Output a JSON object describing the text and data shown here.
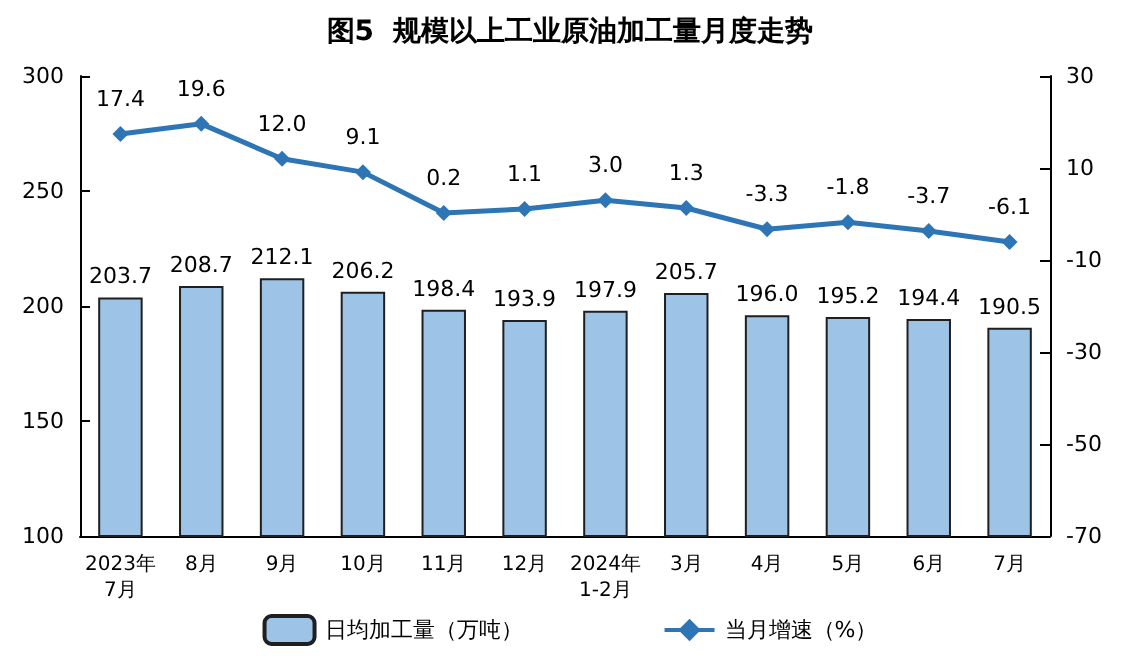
{
  "chart_data": {
    "type": "bar",
    "title": "图5  规模以上工业原油加工量月度走势",
    "categories": [
      "2023年\n7月",
      "8月",
      "9月",
      "10月",
      "11月",
      "12月",
      "2024年\n1-2月",
      "3月",
      "4月",
      "5月",
      "6月",
      "7月"
    ],
    "series": [
      {
        "name": "日均加工量（万吨）",
        "color": "#9dc3e6",
        "values": [
          203.7,
          208.7,
          212.1,
          206.2,
          198.4,
          193.9,
          197.9,
          205.7,
          196.0,
          195.2,
          194.4,
          190.5
        ],
        "value_labels": [
          "203.7",
          "208.7",
          "212.1",
          "206.2",
          "198.4",
          "193.9",
          "197.9",
          "205.7",
          "196.0",
          "195.2",
          "194.4",
          "190.5"
        ]
      },
      {
        "name": "当月增速（%）",
        "type": "line",
        "axis": "y2",
        "color": "#2e75b6",
        "marker": "diamond",
        "values": [
          17.4,
          19.6,
          12.0,
          9.1,
          0.2,
          1.1,
          3.0,
          1.3,
          -3.3,
          -1.8,
          -3.7,
          -6.1
        ],
        "value_labels": [
          "17.4",
          "19.6",
          "12.0",
          "9.1",
          "0.2",
          "1.1",
          "3.0",
          "1.3",
          "-3.3",
          "-1.8",
          "-3.7",
          "-6.1"
        ]
      }
    ],
    "ylim": [
      100,
      300
    ],
    "yticks": [
      100,
      150,
      200,
      250,
      300
    ],
    "y2lim": [
      -70,
      30
    ],
    "y2ticks": [
      -70,
      -50,
      -30,
      -10,
      10,
      30
    ],
    "grid": false,
    "legend": "bottom"
  }
}
